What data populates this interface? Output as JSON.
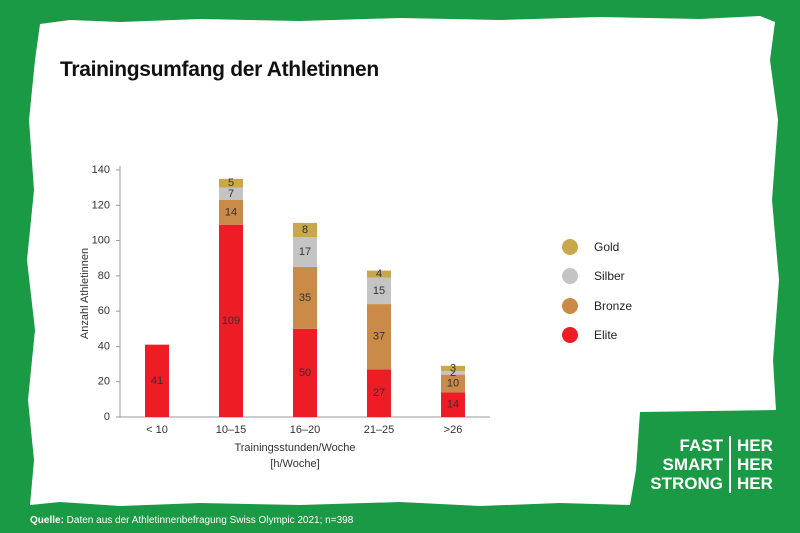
{
  "title": "Trainingsumfang der Athletinnen",
  "source_label": "Quelle:",
  "source_text": " Daten aus der Athletinnenbefragung Swiss Olympic 2021; n=398",
  "logo": {
    "rows": [
      {
        "left": "FAST",
        "right": "HER"
      },
      {
        "left": "SMART",
        "right": "HER"
      },
      {
        "left": "STRONG",
        "right": "HER"
      }
    ]
  },
  "colors": {
    "background": "#1a9a44",
    "Elite": "#ee1c25",
    "Bronze": "#c98b47",
    "Silber": "#c4c4c4",
    "Gold": "#c9a74c"
  },
  "chart_data": {
    "type": "bar",
    "stacked": true,
    "categories": [
      "< 10",
      "10–15",
      "16–20",
      "21–25",
      ">26"
    ],
    "series": [
      {
        "name": "Elite",
        "values": [
          41,
          109,
          50,
          27,
          14
        ]
      },
      {
        "name": "Bronze",
        "values": [
          0,
          14,
          35,
          37,
          10
        ]
      },
      {
        "name": "Silber",
        "values": [
          0,
          7,
          17,
          15,
          2
        ]
      },
      {
        "name": "Gold",
        "values": [
          0,
          5,
          8,
          4,
          3
        ]
      }
    ],
    "xlabel": "Trainingsstunden/Woche",
    "xlabel2": "[h/Woche]",
    "ylabel": "Anzahl Athletinnen",
    "ylim": [
      0,
      140
    ],
    "yticks": [
      0,
      20,
      40,
      60,
      80,
      100,
      120,
      140
    ],
    "legend": [
      "Gold",
      "Silber",
      "Bronze",
      "Elite"
    ],
    "legend_position": "right"
  }
}
